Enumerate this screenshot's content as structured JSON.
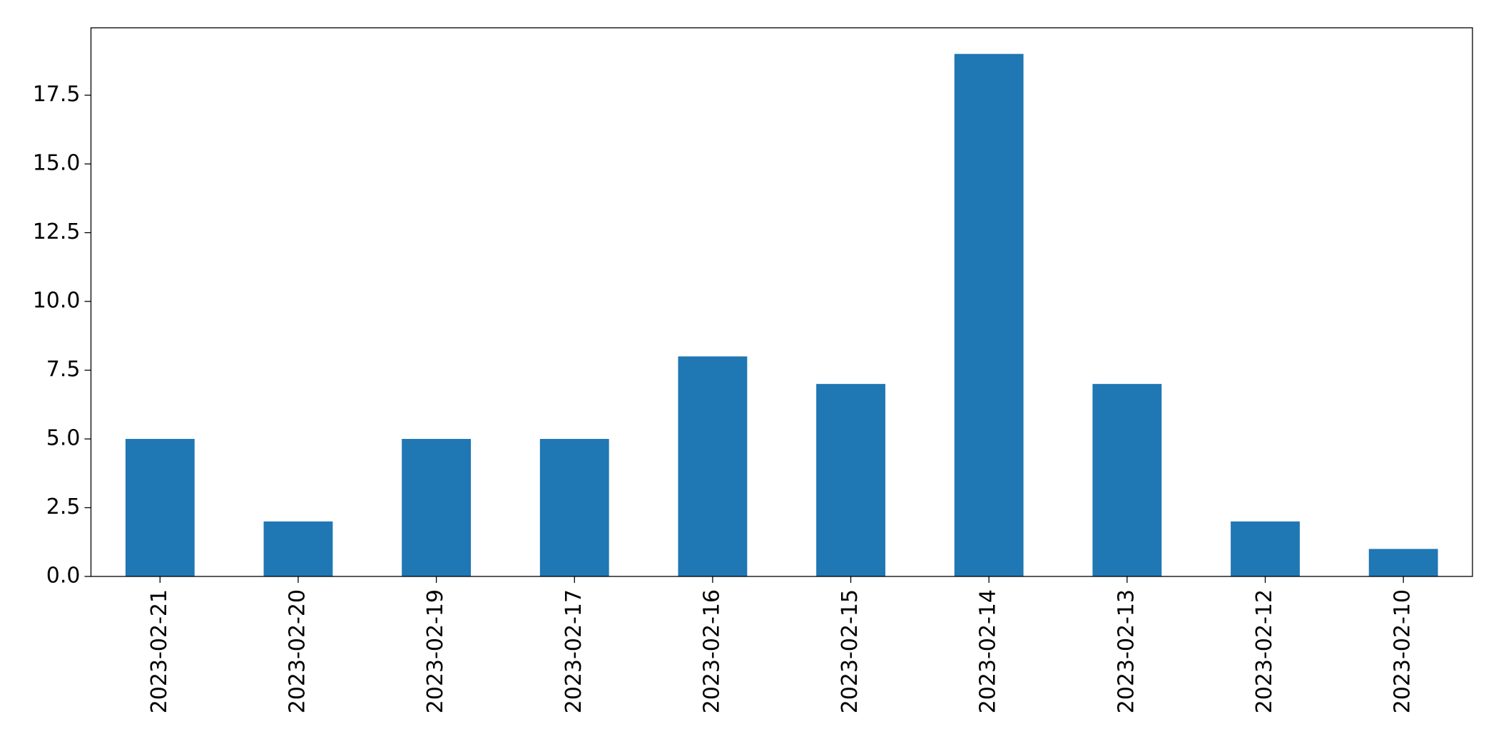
{
  "chart_data": {
    "type": "bar",
    "categories": [
      "2023-02-21",
      "2023-02-20",
      "2023-02-19",
      "2023-02-17",
      "2023-02-16",
      "2023-02-15",
      "2023-02-14",
      "2023-02-13",
      "2023-02-12",
      "2023-02-10"
    ],
    "values": [
      5,
      2,
      5,
      5,
      8,
      7,
      19,
      7,
      2,
      1
    ],
    "color": "#1f77b4",
    "ylim": [
      0,
      19.95
    ],
    "yticks": [
      {
        "value": 0,
        "label": "0.0"
      },
      2.5,
      {
        "value": 5,
        "label": "5.0"
      },
      7.5,
      {
        "value": 10,
        "label": "10.0"
      },
      12.5,
      {
        "value": 15,
        "label": "15.0"
      },
      17.5
    ],
    "grid": false
  }
}
